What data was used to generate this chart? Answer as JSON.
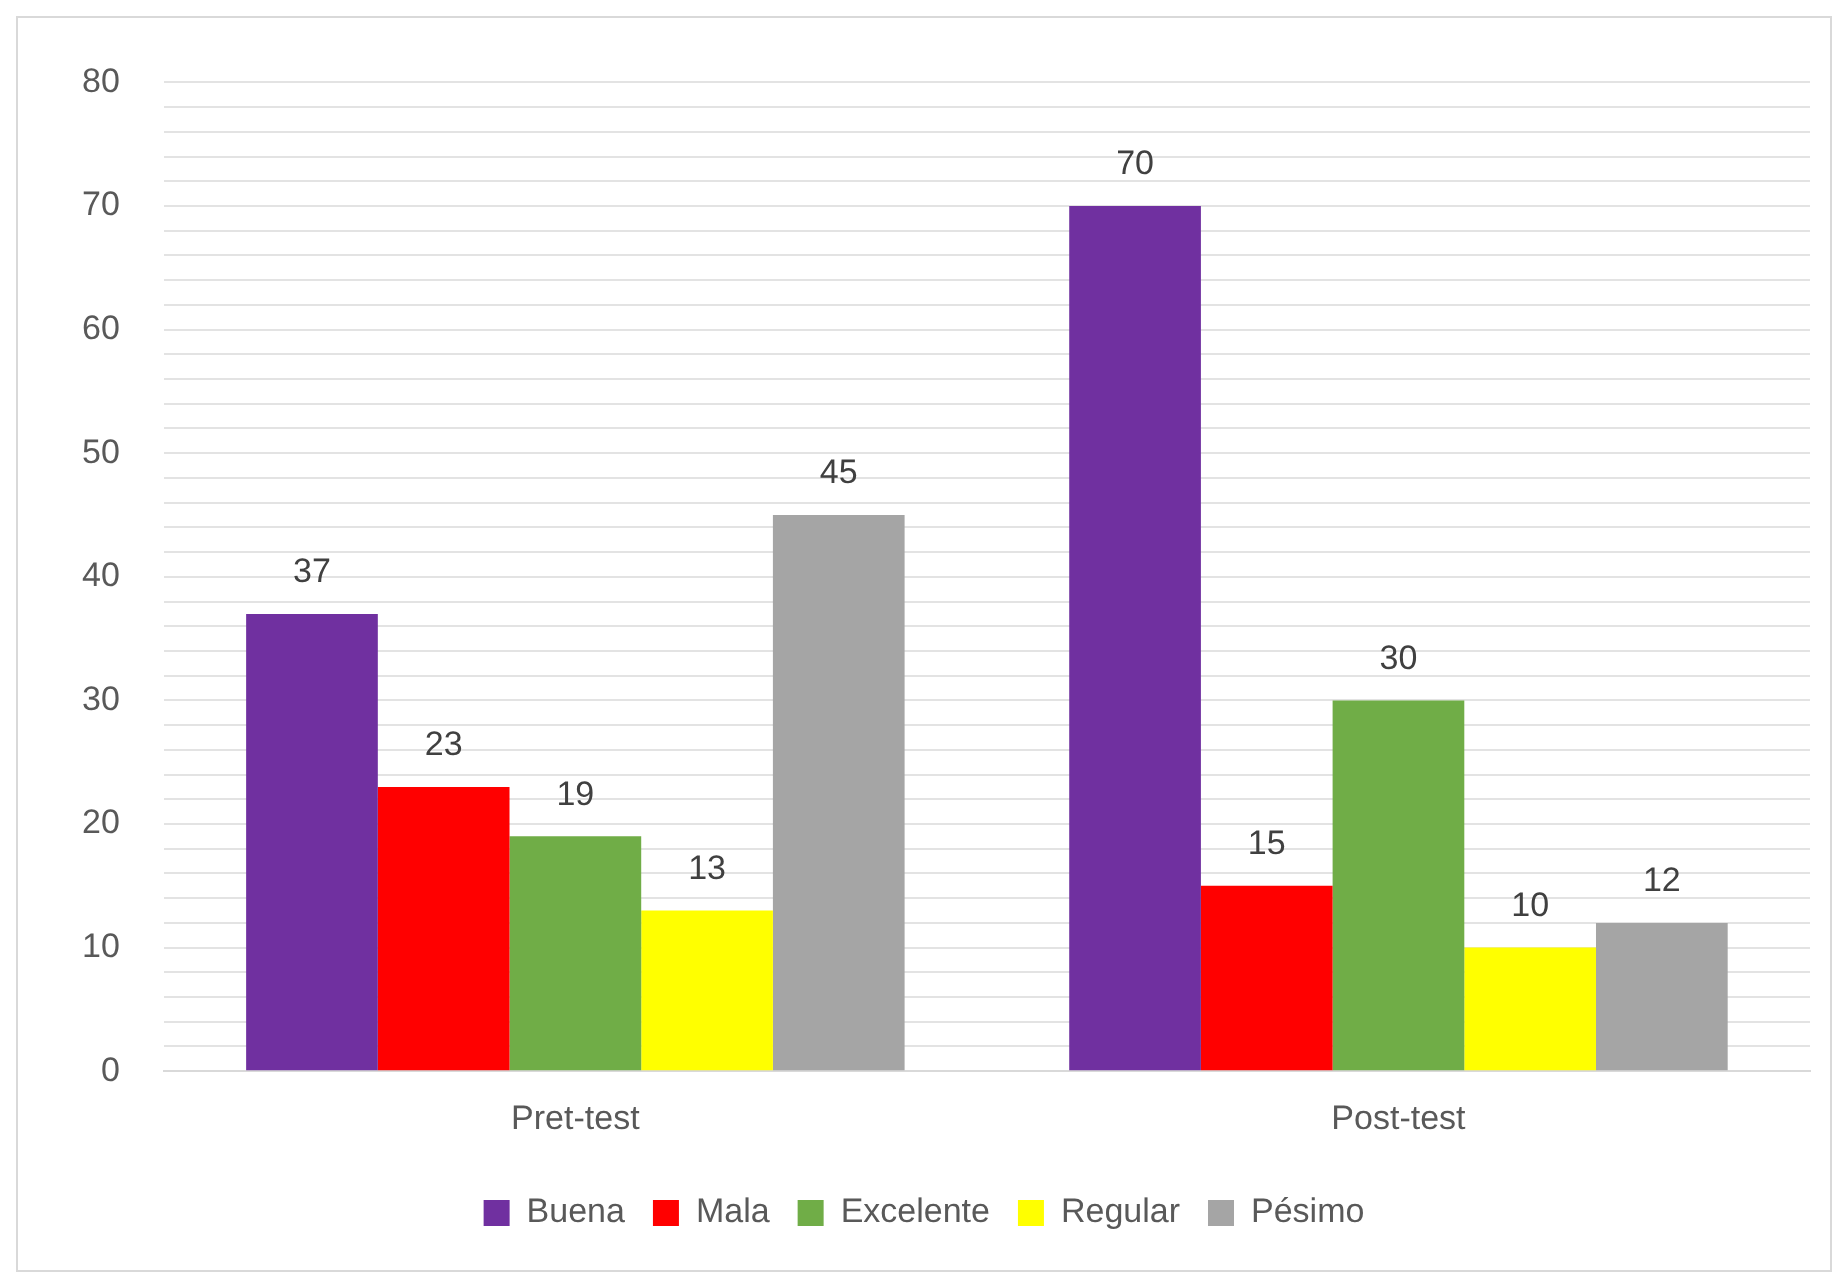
{
  "chart_data": {
    "type": "bar",
    "categories": [
      "Pret-test",
      "Post-test"
    ],
    "series": [
      {
        "name": "Buena",
        "color": "#7030a0",
        "values": [
          37,
          70
        ]
      },
      {
        "name": "Mala",
        "color": "#ff0000",
        "values": [
          23,
          15
        ]
      },
      {
        "name": "Excelente",
        "color": "#70ad47",
        "values": [
          19,
          30
        ]
      },
      {
        "name": "Regular",
        "color": "#ffff00",
        "values": [
          13,
          10
        ]
      },
      {
        "name": "Pésimo",
        "color": "#a5a5a5",
        "values": [
          45,
          12
        ]
      }
    ],
    "ylim": [
      0,
      80
    ],
    "yticks": [
      0,
      {
        "value": 2,
        "label": null
      },
      {
        "value": 4,
        "label": null
      },
      {
        "value": 6,
        "label": null
      },
      {
        "value": 8,
        "label": null
      },
      10,
      {
        "value": 12,
        "label": null
      },
      {
        "value": 14,
        "label": null
      },
      {
        "value": 16,
        "label": null
      },
      {
        "value": 18,
        "label": null
      },
      20,
      {
        "value": 22,
        "label": null
      },
      {
        "value": 24,
        "label": null
      },
      {
        "value": 26,
        "label": null
      },
      {
        "value": 28,
        "label": null
      },
      30,
      {
        "value": 32,
        "label": null
      },
      {
        "value": 34,
        "label": null
      },
      {
        "value": 36,
        "label": null
      },
      {
        "value": 38,
        "label": null
      },
      40,
      {
        "value": 42,
        "label": null
      },
      {
        "value": 44,
        "label": null
      },
      {
        "value": 46,
        "label": null
      },
      {
        "value": 48,
        "label": null
      },
      50,
      {
        "value": 52,
        "label": null
      },
      {
        "value": 54,
        "label": null
      },
      {
        "value": 56,
        "label": null
      },
      {
        "value": 58,
        "label": null
      },
      60,
      {
        "value": 62,
        "label": null
      },
      {
        "value": 64,
        "label": null
      },
      {
        "value": 66,
        "label": null
      },
      {
        "value": 68,
        "label": null
      },
      70,
      {
        "value": 72,
        "label": null
      },
      {
        "value": 74,
        "label": null
      },
      {
        "value": 76,
        "label": null
      },
      {
        "value": 78,
        "label": null
      },
      80
    ],
    "grid": "y",
    "legend": "bottom",
    "data_labels": true
  }
}
